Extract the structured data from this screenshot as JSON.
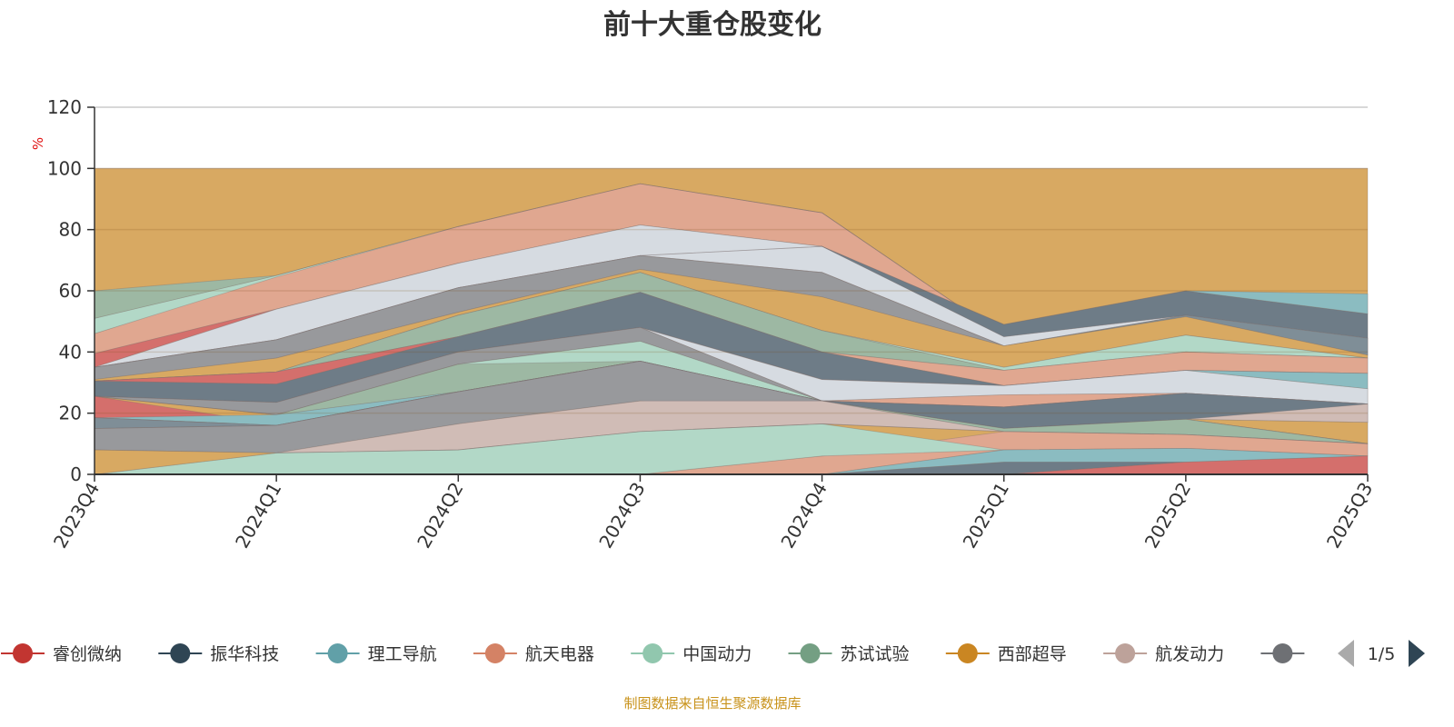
{
  "chart_data": {
    "type": "area",
    "stacked": true,
    "title": "前十大重仓股变化",
    "ylabel": "%",
    "xlabel": "",
    "ylim": [
      0,
      120
    ],
    "yticks": [
      0,
      20,
      40,
      60,
      80,
      100,
      120
    ],
    "categories": [
      "2023Q4",
      "2024Q1",
      "2024Q2",
      "2024Q3",
      "2024Q4",
      "2025Q1",
      "2025Q2",
      "2025Q3"
    ],
    "grid": true,
    "legend_position": "bottom",
    "bands": [
      {
        "color": "#d8a962",
        "lo": [
          0,
          0,
          0,
          0,
          0,
          0,
          0,
          0
        ],
        "hi": [
          100,
          100,
          100,
          100,
          100,
          100,
          100,
          100
        ]
      },
      {
        "color": "#e0a790",
        "lo": [
          39.5,
          54,
          69,
          81.5,
          74.5,
          45,
          52,
          45
        ],
        "hi": [
          46,
          65,
          81,
          95,
          85.5,
          45,
          52,
          45
        ]
      },
      {
        "color": "#b2d8c7",
        "lo": [
          46,
          64.5,
          81,
          95,
          85.5,
          45,
          52,
          45
        ],
        "hi": [
          51,
          65,
          81,
          95,
          85.5,
          45,
          52,
          45
        ]
      },
      {
        "color": "#9db8a3",
        "lo": [
          51,
          65,
          81,
          95,
          85.5,
          45,
          52,
          45
        ],
        "hi": [
          60,
          65,
          81,
          95,
          85.5,
          45,
          52,
          45
        ]
      },
      {
        "color": "#d46f6c",
        "lo": [
          35,
          54,
          69,
          81.5,
          74.5,
          45,
          52,
          45
        ],
        "hi": [
          39.5,
          54,
          69,
          81.5,
          74.5,
          45,
          52,
          45
        ]
      },
      {
        "color": "#d6dbe1",
        "lo": [
          35,
          44,
          61,
          71.5,
          66,
          42,
          52,
          45
        ],
        "hi": [
          35,
          54,
          69,
          81.5,
          74.5,
          45,
          52,
          45
        ]
      },
      {
        "color": "#6e7c87",
        "lo": [
          35,
          44,
          61,
          71.5,
          74.5,
          45,
          52,
          44.5
        ],
        "hi": [
          35,
          44,
          61,
          71.5,
          74.5,
          49,
          60,
          52.5
        ]
      },
      {
        "color": "#8bbcc1",
        "lo": [
          35,
          44,
          61,
          71.5,
          74.5,
          49,
          60,
          52.5
        ],
        "hi": [
          35,
          44,
          61,
          71.5,
          74.5,
          49,
          60,
          59
        ]
      },
      {
        "color": "#98999c",
        "lo": [
          31,
          38,
          53,
          67,
          58,
          42,
          52,
          39
        ],
        "hi": [
          35,
          44,
          61,
          71.5,
          66,
          42,
          52,
          44.5
        ]
      },
      {
        "color": "#7f8e97",
        "lo": [
          35,
          44,
          61,
          71.5,
          66,
          42,
          51.5,
          39
        ],
        "hi": [
          35,
          44,
          61,
          71.5,
          66,
          42,
          52,
          44.5
        ]
      },
      {
        "color": "#d8a962",
        "lo": [
          30.5,
          33.5,
          52,
          66,
          47,
          35,
          45.5,
          38
        ],
        "hi": [
          31,
          38,
          53,
          67,
          58,
          42,
          51.5,
          39
        ]
      },
      {
        "color": "#b2d8c7",
        "lo": [
          30.5,
          33.5,
          52,
          66,
          47,
          34,
          40,
          38
        ],
        "hi": [
          30.5,
          33.5,
          52,
          66,
          47,
          35,
          45.5,
          38
        ]
      },
      {
        "color": "#9db8a3",
        "lo": [
          30.5,
          33.5,
          45,
          59.5,
          40,
          34,
          40,
          38
        ],
        "hi": [
          30.5,
          33.5,
          52,
          66,
          47,
          34,
          40,
          38
        ]
      },
      {
        "color": "#e0a790",
        "lo": [
          30.5,
          33.5,
          45,
          59.5,
          40,
          29,
          34,
          33
        ],
        "hi": [
          30.5,
          33.5,
          45,
          59.5,
          40,
          34,
          40,
          38
        ]
      },
      {
        "color": "#d46f6c",
        "lo": [
          30.5,
          29.5,
          45,
          59.5,
          40,
          29,
          34,
          33
        ],
        "hi": [
          30.5,
          33.5,
          45,
          59.5,
          40,
          29,
          34,
          33
        ]
      },
      {
        "color": "#6e7c87",
        "lo": [
          25.5,
          23.5,
          40,
          48,
          31,
          29,
          34,
          33
        ],
        "hi": [
          30.5,
          29.5,
          45,
          59.5,
          40,
          29,
          34,
          33
        ]
      },
      {
        "color": "#d6dbe1",
        "lo": [
          25.5,
          23.5,
          40,
          48,
          24,
          26,
          26.5,
          23
        ],
        "hi": [
          25.5,
          23.5,
          40,
          48,
          31,
          29,
          34,
          28
        ]
      },
      {
        "color": "#8bbcc1",
        "lo": [
          25.5,
          23.5,
          40,
          48,
          31,
          29,
          34,
          28
        ],
        "hi": [
          25.5,
          23.5,
          40,
          48,
          31,
          29,
          34,
          33
        ]
      },
      {
        "color": "#e0a790",
        "lo": [
          25.5,
          23.5,
          40,
          48,
          24,
          22,
          26.5,
          23
        ],
        "hi": [
          25.5,
          23.5,
          40,
          48,
          24,
          26,
          26.5,
          23
        ]
      },
      {
        "color": "#98999c",
        "lo": [
          25.5,
          19.5,
          36,
          43.5,
          24,
          22,
          26.5,
          23
        ],
        "hi": [
          25.5,
          23.5,
          40,
          48,
          24,
          22,
          26.5,
          23
        ]
      },
      {
        "color": "#9db8a3",
        "lo": [
          25.5,
          19.5,
          27,
          37,
          24,
          22,
          26.5,
          23
        ],
        "hi": [
          25.5,
          19.5,
          36,
          43.5,
          24,
          22,
          26.5,
          23
        ]
      },
      {
        "color": "#b2d8c7",
        "lo": [
          25.5,
          19.5,
          36,
          37,
          24,
          22,
          26.5,
          23
        ],
        "hi": [
          25.5,
          19.5,
          36,
          43.5,
          24,
          22,
          26.5,
          23
        ]
      },
      {
        "color": "#d46f6c",
        "lo": [
          18.5,
          16.5,
          27,
          37,
          24,
          15,
          18,
          10
        ],
        "hi": [
          25.5,
          16.5,
          27,
          37,
          24,
          15,
          18,
          10
        ]
      },
      {
        "color": "#8bbcc1",
        "lo": [
          18.5,
          16,
          27,
          37,
          24,
          15,
          18,
          10
        ],
        "hi": [
          18.5,
          19.5,
          27,
          37,
          24,
          15,
          18,
          10
        ]
      },
      {
        "color": "#6e7c87",
        "lo": [
          18.5,
          16,
          27,
          37,
          24,
          15,
          18,
          17
        ],
        "hi": [
          18.5,
          16,
          27,
          37,
          24,
          22,
          26.5,
          23
        ]
      },
      {
        "color": "#d0bcb6",
        "lo": [
          18.5,
          16,
          27,
          37,
          24,
          15,
          18,
          17
        ],
        "hi": [
          18.5,
          16,
          27,
          37,
          24,
          15,
          18,
          23
        ]
      },
      {
        "color": "#d8a962",
        "lo": [
          18.5,
          16,
          27,
          37,
          24,
          15,
          18,
          10
        ],
        "hi": [
          18.5,
          16,
          27,
          37,
          24,
          15,
          18,
          17
        ]
      },
      {
        "color": "#7f8e97",
        "lo": [
          15,
          16,
          27,
          37,
          24,
          15,
          18,
          10
        ],
        "hi": [
          18.5,
          16,
          27,
          37,
          24,
          15,
          18,
          10
        ]
      },
      {
        "color": "#98999c",
        "lo": [
          8,
          7,
          16.5,
          24,
          16.5,
          15,
          18,
          10
        ],
        "hi": [
          15,
          16,
          27,
          37,
          24,
          15,
          18,
          10
        ]
      },
      {
        "color": "#9db8a3",
        "lo": [
          15,
          16,
          27,
          37,
          24,
          14,
          13,
          10
        ],
        "hi": [
          15,
          16,
          27,
          37,
          24,
          15,
          18,
          10
        ]
      },
      {
        "color": "#d0bcb6",
        "lo": [
          8,
          7,
          8,
          14,
          16.5,
          14,
          13,
          10
        ],
        "hi": [
          8,
          7,
          16.5,
          24,
          24,
          14,
          13,
          10
        ]
      },
      {
        "color": "#e0a790",
        "lo": [
          0,
          0,
          0,
          0,
          0,
          8,
          8.5,
          6
        ],
        "hi": [
          0,
          0,
          0,
          0,
          6,
          14,
          13,
          10
        ]
      },
      {
        "color": "#b2d8c7",
        "lo": [
          0,
          0,
          0,
          0,
          6,
          8,
          8.5,
          6
        ],
        "hi": [
          0,
          7,
          8,
          14,
          16.5,
          8,
          8.5,
          6
        ]
      },
      {
        "color": "#d8a962",
        "lo": [
          0,
          7,
          8,
          14,
          16.5,
          14,
          13,
          10
        ],
        "hi": [
          8,
          7,
          8,
          14,
          16.5,
          14,
          13,
          10
        ]
      },
      {
        "color": "#8bbcc1",
        "lo": [
          0,
          0,
          0,
          0,
          0,
          4,
          4,
          6
        ],
        "hi": [
          0,
          0,
          0,
          0,
          0,
          8,
          8.5,
          6
        ]
      },
      {
        "color": "#6e7c87",
        "lo": [
          0,
          0,
          0,
          0,
          0,
          0,
          4,
          4.5
        ],
        "hi": [
          0,
          0,
          0,
          0,
          0,
          4,
          4,
          4.5
        ]
      },
      {
        "color": "#d46f6c",
        "lo": [
          0,
          0,
          0,
          0,
          0,
          0,
          0,
          0
        ],
        "hi": [
          0,
          0,
          0,
          0,
          0,
          0,
          4,
          6
        ]
      }
    ]
  },
  "legend": {
    "items": [
      {
        "label": "睿创微纳",
        "color": "#c23531"
      },
      {
        "label": "振华科技",
        "color": "#2f4554"
      },
      {
        "label": "理工导航",
        "color": "#61a0a8"
      },
      {
        "label": "航天电器",
        "color": "#d48265"
      },
      {
        "label": "中国动力",
        "color": "#91c7ae"
      },
      {
        "label": "苏试试验",
        "color": "#749f83"
      },
      {
        "label": "西部超导",
        "color": "#ca8622"
      },
      {
        "label": "航发动力",
        "color": "#bda29a"
      },
      {
        "label": "",
        "color": "#6e7074"
      }
    ],
    "page": "1/5"
  },
  "source_note": "制图数据来自恒生聚源数据库"
}
